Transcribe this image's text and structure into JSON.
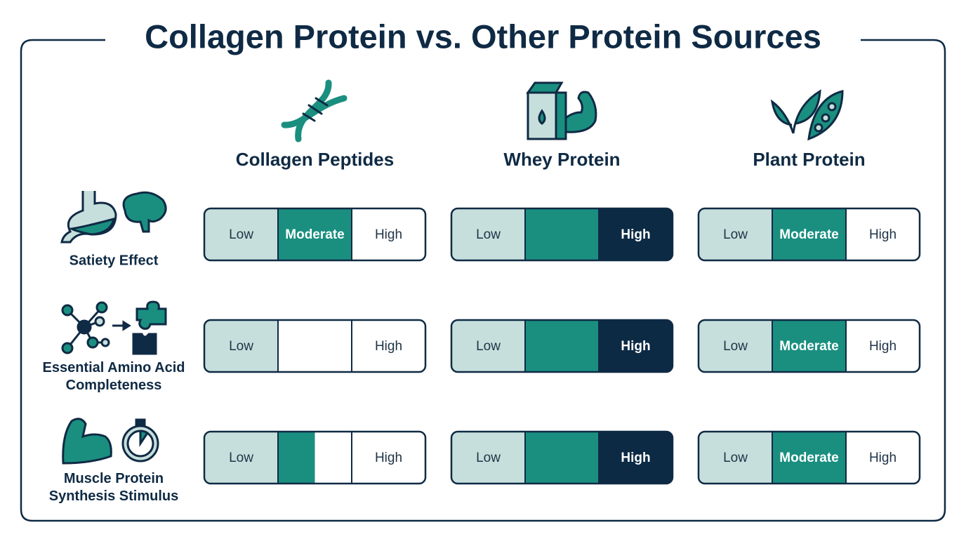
{
  "title": "Collagen Protein vs. Other Protein Sources",
  "columns": [
    "Collagen Peptides",
    "Whey Protein",
    "Plant Protein"
  ],
  "rows": [
    {
      "label": [
        "Satiety Effect"
      ],
      "cells": [
        [
          {
            "label": "Low",
            "colors": [
              "#c7dfdc"
            ]
          },
          {
            "label": "Moderate",
            "colors": [
              "#1a8f80"
            ]
          },
          {
            "label": "High",
            "colors": [
              "#ffffff"
            ]
          }
        ],
        [
          {
            "label": "Low",
            "colors": [
              "#c7dfdc"
            ]
          },
          {
            "colors": [
              "#1a8f80"
            ]
          },
          {
            "label": "High",
            "colors": [
              "#0d2a45"
            ]
          }
        ],
        [
          {
            "label": "Low",
            "colors": [
              "#c7dfdc"
            ]
          },
          {
            "label": "Moderate",
            "colors": [
              "#1a8f80"
            ]
          },
          {
            "label": "High",
            "colors": [
              "#ffffff"
            ]
          }
        ]
      ]
    },
    {
      "label": [
        "Essential Amino Acid",
        "Completeness"
      ],
      "cells": [
        [
          {
            "label": "Low",
            "colors": [
              "#c7dfdc"
            ]
          },
          {
            "colors": [
              "#ffffff"
            ]
          },
          {
            "label": "High",
            "colors": [
              "#ffffff"
            ]
          }
        ],
        [
          {
            "label": "Low",
            "colors": [
              "#c7dfdc"
            ]
          },
          {
            "colors": [
              "#1a8f80"
            ]
          },
          {
            "label": "High",
            "colors": [
              "#0d2a45"
            ]
          }
        ],
        [
          {
            "label": "Low",
            "colors": [
              "#c7dfdc"
            ]
          },
          {
            "label": "Moderate",
            "colors": [
              "#1a8f80"
            ]
          },
          {
            "label": "High",
            "colors": [
              "#ffffff"
            ]
          }
        ]
      ]
    },
    {
      "label": [
        "Muscle Protein",
        "Synthesis Stimulus"
      ],
      "cells": [
        [
          {
            "label": "Low",
            "colors": [
              "#c7dfdc"
            ]
          },
          {
            "colors": [
              "#1a8f80",
              "#ffffff"
            ]
          },
          {
            "label": "High",
            "colors": [
              "#ffffff"
            ]
          }
        ],
        [
          {
            "label": "Low",
            "colors": [
              "#c7dfdc"
            ]
          },
          {
            "colors": [
              "#1a8f80"
            ]
          },
          {
            "label": "High",
            "colors": [
              "#0d2a45"
            ]
          }
        ],
        [
          {
            "label": "Low",
            "colors": [
              "#c7dfdc"
            ]
          },
          {
            "label": "Moderate",
            "colors": [
              "#1a8f80"
            ]
          },
          {
            "label": "High",
            "colors": [
              "#ffffff"
            ]
          }
        ]
      ]
    }
  ]
}
